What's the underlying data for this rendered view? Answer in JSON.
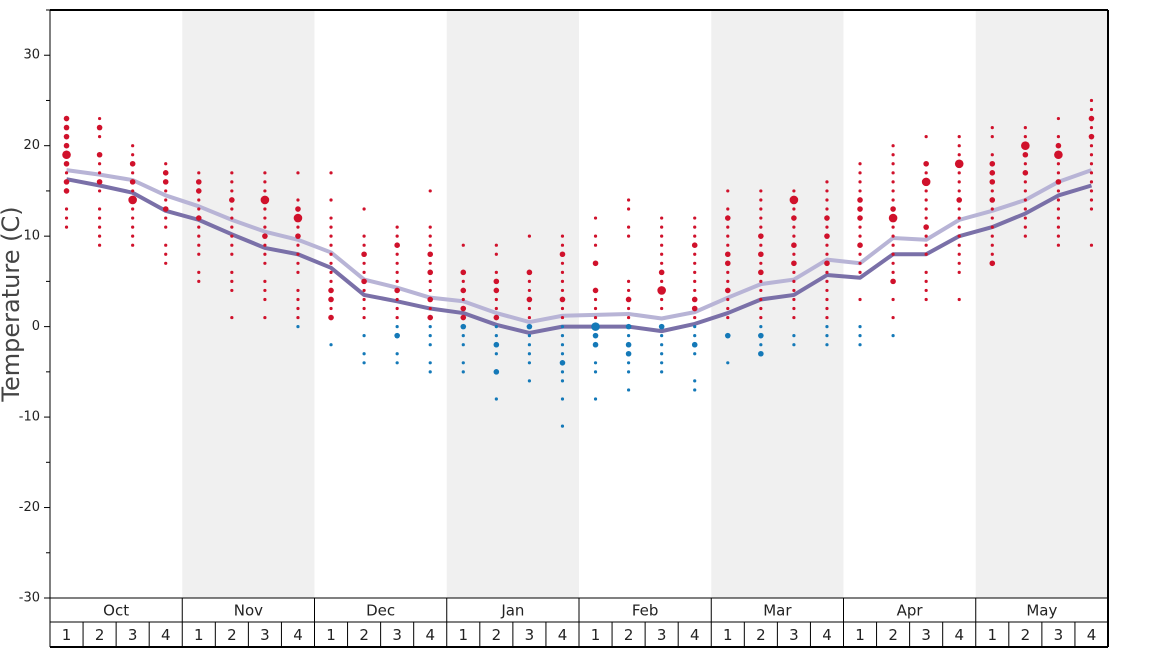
{
  "chart_data": {
    "type": "dot-strip",
    "y_label": "Temperature (C)",
    "ylim": [
      -30,
      35
    ],
    "yticks": [
      -30,
      -20,
      -10,
      0,
      10,
      20,
      30
    ],
    "minor_yticks": [
      -25,
      -15,
      -5,
      5,
      15,
      25,
      35
    ],
    "months": [
      "Oct",
      "Nov",
      "Dec",
      "Jan",
      "Feb",
      "Mar",
      "Apr",
      "May"
    ],
    "categories": [
      "1",
      "2",
      "3",
      "4",
      "1",
      "2",
      "3",
      "4",
      "1",
      "2",
      "3",
      "4",
      "1",
      "2",
      "3",
      "4",
      "1",
      "2",
      "3",
      "4",
      "1",
      "2",
      "3",
      "4",
      "1",
      "2",
      "3",
      "4",
      "1",
      "2",
      "3",
      "4"
    ],
    "band_color": "#f0f0f0",
    "warm_color": "#d0112b",
    "cold_color": "#1479b8",
    "series": [
      {
        "color": "#b8b4d6",
        "values": [
          17.3,
          16.8,
          16.2,
          14.5,
          13.3,
          11.8,
          10.5,
          9.6,
          8.2,
          5.2,
          4.3,
          3.2,
          2.8,
          1.5,
          0.5,
          1.2,
          1.3,
          1.4,
          0.9,
          1.6,
          3.2,
          4.7,
          5.2,
          7.4,
          7.0,
          9.8,
          9.6,
          11.8,
          12.8,
          14.0,
          16.0,
          17.3
        ]
      },
      {
        "color": "#7a70a8",
        "values": [
          16.3,
          15.6,
          14.8,
          12.8,
          11.8,
          10.2,
          8.7,
          8.0,
          6.5,
          3.5,
          2.8,
          2.0,
          1.5,
          0.2,
          -0.7,
          0,
          0,
          0,
          -0.5,
          0.3,
          1.5,
          3.0,
          3.5,
          5.7,
          5.4,
          8.0,
          8.0,
          10.0,
          11.0,
          12.5,
          14.5,
          15.6
        ]
      }
    ],
    "weeks": [
      {
        "temps": [
          23,
          22,
          21,
          20,
          19,
          18,
          17,
          16,
          15,
          13,
          12,
          11
        ],
        "counts": [
          2,
          2,
          2,
          2,
          3,
          2,
          1,
          2,
          2,
          1,
          1,
          1
        ]
      },
      {
        "temps": [
          23,
          22,
          21,
          19,
          18,
          17,
          16,
          15,
          13,
          12,
          11,
          10,
          9
        ],
        "counts": [
          1,
          2,
          1,
          2,
          1,
          1,
          2,
          1,
          1,
          1,
          1,
          1,
          1
        ]
      },
      {
        "temps": [
          20,
          19,
          18,
          17,
          16,
          15,
          14,
          13,
          12,
          11,
          10,
          9
        ],
        "counts": [
          1,
          1,
          2,
          1,
          2,
          1,
          3,
          1,
          1,
          1,
          1,
          1
        ]
      },
      {
        "temps": [
          18,
          17,
          16,
          15,
          14,
          13,
          12,
          11,
          9,
          8,
          7
        ],
        "counts": [
          1,
          2,
          2,
          1,
          1,
          2,
          1,
          1,
          1,
          1,
          1
        ]
      },
      {
        "temps": [
          17,
          16,
          15,
          14,
          13,
          12,
          11,
          10,
          9,
          8,
          6,
          5
        ],
        "counts": [
          1,
          2,
          2,
          1,
          1,
          2,
          1,
          1,
          1,
          1,
          1,
          1
        ]
      },
      {
        "temps": [
          17,
          16,
          15,
          14,
          13,
          12,
          11,
          10,
          9,
          8,
          6,
          5,
          4,
          1
        ],
        "counts": [
          1,
          1,
          1,
          2,
          1,
          1,
          1,
          1,
          1,
          1,
          1,
          1,
          1,
          1
        ]
      },
      {
        "temps": [
          17,
          16,
          15,
          14,
          13,
          12,
          11,
          10,
          9,
          8,
          7,
          5,
          4,
          3,
          1
        ],
        "counts": [
          1,
          1,
          1,
          3,
          1,
          1,
          1,
          2,
          1,
          1,
          1,
          1,
          1,
          1,
          1
        ]
      },
      {
        "temps": [
          17,
          14,
          13,
          12,
          11,
          10,
          9,
          8,
          7,
          6,
          4,
          3,
          2,
          1,
          0
        ],
        "counts": [
          1,
          1,
          2,
          3,
          1,
          2,
          1,
          1,
          1,
          1,
          1,
          1,
          1,
          1,
          1
        ]
      },
      {
        "temps": [
          17,
          14,
          12,
          11,
          10,
          9,
          8,
          7,
          6,
          5,
          4,
          3,
          2,
          1,
          -2
        ],
        "counts": [
          1,
          1,
          1,
          1,
          1,
          1,
          1,
          1,
          1,
          1,
          2,
          2,
          1,
          2,
          1
        ]
      },
      {
        "temps": [
          13,
          10,
          9,
          8,
          7,
          6,
          5,
          4,
          3,
          2,
          1,
          -1,
          -3,
          -4
        ],
        "counts": [
          1,
          1,
          1,
          2,
          1,
          1,
          2,
          1,
          1,
          1,
          1,
          1,
          1,
          1
        ]
      },
      {
        "temps": [
          11,
          10,
          9,
          8,
          7,
          6,
          5,
          4,
          3,
          2,
          1,
          0,
          -1,
          -3,
          -4
        ],
        "counts": [
          1,
          1,
          2,
          1,
          1,
          1,
          1,
          2,
          1,
          1,
          1,
          1,
          2,
          1,
          1
        ]
      },
      {
        "temps": [
          15,
          11,
          10,
          9,
          8,
          7,
          6,
          5,
          4,
          3,
          2,
          1,
          0,
          -1,
          -2,
          -4,
          -5
        ],
        "counts": [
          1,
          1,
          1,
          1,
          2,
          1,
          2,
          1,
          1,
          2,
          1,
          2,
          1,
          1,
          1,
          1,
          1
        ]
      },
      {
        "temps": [
          9,
          6,
          5,
          4,
          3,
          2,
          1,
          0,
          -1,
          -2,
          -4,
          -5
        ],
        "counts": [
          1,
          2,
          1,
          2,
          1,
          2,
          2,
          2,
          1,
          1,
          1,
          1
        ]
      },
      {
        "temps": [
          9,
          8,
          6,
          5,
          4,
          3,
          2,
          1,
          0,
          -1,
          -2,
          -3,
          -5,
          -8
        ],
        "counts": [
          1,
          1,
          1,
          2,
          2,
          1,
          1,
          2,
          1,
          1,
          2,
          1,
          2,
          1
        ]
      },
      {
        "temps": [
          10,
          6,
          5,
          4,
          3,
          2,
          1,
          0,
          -1,
          -2,
          -3,
          -4,
          -6
        ],
        "counts": [
          1,
          2,
          1,
          1,
          2,
          1,
          1,
          2,
          1,
          1,
          1,
          1,
          1
        ]
      },
      {
        "temps": [
          10,
          9,
          8,
          7,
          6,
          5,
          4,
          3,
          2,
          1,
          0,
          -1,
          -2,
          -3,
          -4,
          -5,
          -6,
          -8,
          -11
        ],
        "counts": [
          1,
          1,
          2,
          1,
          1,
          1,
          1,
          2,
          1,
          1,
          1,
          1,
          1,
          1,
          2,
          1,
          1,
          1,
          1
        ]
      },
      {
        "temps": [
          12,
          10,
          9,
          7,
          4,
          3,
          2,
          1,
          0,
          -1,
          -2,
          -4,
          -5,
          -8
        ],
        "counts": [
          1,
          1,
          1,
          2,
          2,
          1,
          1,
          1,
          3,
          2,
          2,
          1,
          1,
          1
        ]
      },
      {
        "temps": [
          14,
          13,
          11,
          10,
          5,
          4,
          3,
          2,
          1,
          0,
          -1,
          -2,
          -3,
          -4,
          -5,
          -7
        ],
        "counts": [
          1,
          1,
          1,
          1,
          1,
          1,
          2,
          1,
          1,
          2,
          1,
          2,
          2,
          1,
          1,
          1
        ]
      },
      {
        "temps": [
          12,
          11,
          10,
          9,
          8,
          7,
          6,
          5,
          4,
          3,
          2,
          0,
          -1,
          -2,
          -3,
          -4,
          -5
        ],
        "counts": [
          1,
          1,
          1,
          1,
          1,
          1,
          2,
          1,
          3,
          1,
          1,
          2,
          1,
          1,
          1,
          1,
          1
        ]
      },
      {
        "temps": [
          12,
          11,
          10,
          9,
          8,
          7,
          6,
          5,
          4,
          3,
          2,
          1,
          0,
          -1,
          -2,
          -3,
          -6,
          -7
        ],
        "counts": [
          1,
          1,
          1,
          2,
          1,
          1,
          1,
          1,
          1,
          2,
          2,
          1,
          1,
          1,
          2,
          1,
          1,
          1
        ]
      },
      {
        "temps": [
          15,
          13,
          12,
          11,
          10,
          9,
          8,
          7,
          6,
          5,
          4,
          3,
          2,
          1,
          -1,
          -4
        ],
        "counts": [
          1,
          1,
          2,
          1,
          1,
          1,
          2,
          2,
          1,
          1,
          2,
          1,
          1,
          1,
          2,
          1
        ]
      },
      {
        "temps": [
          15,
          14,
          13,
          12,
          11,
          10,
          9,
          8,
          7,
          6,
          5,
          4,
          3,
          2,
          1,
          0,
          -1,
          -2,
          -3
        ],
        "counts": [
          1,
          1,
          1,
          1,
          1,
          2,
          1,
          2,
          1,
          2,
          1,
          1,
          1,
          1,
          1,
          1,
          2,
          1,
          2
        ]
      },
      {
        "temps": [
          15,
          14,
          13,
          12,
          11,
          10,
          9,
          8,
          7,
          6,
          5,
          4,
          3,
          2,
          1,
          -1,
          -2
        ],
        "counts": [
          1,
          3,
          1,
          2,
          1,
          1,
          2,
          1,
          2,
          1,
          1,
          1,
          1,
          1,
          1,
          1,
          1
        ]
      },
      {
        "temps": [
          16,
          15,
          14,
          13,
          12,
          11,
          10,
          9,
          8,
          7,
          6,
          5,
          4,
          3,
          2,
          1,
          0,
          -1,
          -2
        ],
        "counts": [
          1,
          1,
          1,
          1,
          2,
          1,
          2,
          1,
          1,
          2,
          1,
          1,
          1,
          1,
          1,
          1,
          1,
          1,
          1
        ]
      },
      {
        "temps": [
          18,
          17,
          16,
          15,
          14,
          13,
          12,
          11,
          10,
          9,
          8,
          7,
          6,
          3,
          0,
          -1,
          -2
        ],
        "counts": [
          1,
          1,
          1,
          1,
          2,
          2,
          2,
          1,
          1,
          2,
          1,
          1,
          1,
          1,
          1,
          1,
          1
        ]
      },
      {
        "temps": [
          20,
          19,
          18,
          17,
          16,
          15,
          14,
          13,
          12,
          11,
          10,
          9,
          8,
          7,
          6,
          5,
          3,
          1,
          -1
        ],
        "counts": [
          1,
          1,
          1,
          1,
          1,
          1,
          1,
          2,
          3,
          1,
          1,
          1,
          1,
          1,
          1,
          2,
          1,
          1,
          1
        ]
      },
      {
        "temps": [
          21,
          18,
          17,
          16,
          15,
          14,
          13,
          12,
          11,
          10,
          9,
          8,
          6,
          5,
          4,
          3
        ],
        "counts": [
          1,
          2,
          1,
          3,
          1,
          1,
          1,
          1,
          2,
          1,
          1,
          1,
          1,
          1,
          1,
          1
        ]
      },
      {
        "temps": [
          21,
          20,
          19,
          18,
          17,
          16,
          15,
          14,
          13,
          12,
          11,
          10,
          9,
          8,
          7,
          6,
          3
        ],
        "counts": [
          1,
          1,
          1,
          3,
          1,
          1,
          1,
          2,
          1,
          1,
          1,
          1,
          1,
          1,
          1,
          1,
          1
        ]
      },
      {
        "temps": [
          22,
          21,
          19,
          18,
          17,
          16,
          15,
          14,
          13,
          12,
          11,
          10,
          9,
          8,
          7
        ],
        "counts": [
          1,
          1,
          1,
          2,
          2,
          2,
          1,
          2,
          1,
          1,
          1,
          1,
          1,
          1,
          2
        ]
      },
      {
        "temps": [
          22,
          21,
          20,
          19,
          18,
          17,
          16,
          15,
          14,
          13,
          12,
          11,
          10
        ],
        "counts": [
          1,
          1,
          3,
          2,
          1,
          2,
          1,
          1,
          1,
          1,
          1,
          1,
          1
        ]
      },
      {
        "temps": [
          23,
          21,
          20,
          19,
          18,
          17,
          16,
          15,
          14,
          13,
          12,
          11,
          10,
          9
        ],
        "counts": [
          1,
          1,
          2,
          3,
          1,
          1,
          2,
          1,
          1,
          1,
          1,
          1,
          1,
          1
        ]
      },
      {
        "temps": [
          25,
          24,
          23,
          22,
          21,
          20,
          19,
          18,
          17,
          16,
          15,
          14,
          13,
          9
        ],
        "counts": [
          1,
          1,
          2,
          1,
          2,
          1,
          1,
          1,
          1,
          1,
          1,
          1,
          1,
          1
        ]
      }
    ]
  }
}
